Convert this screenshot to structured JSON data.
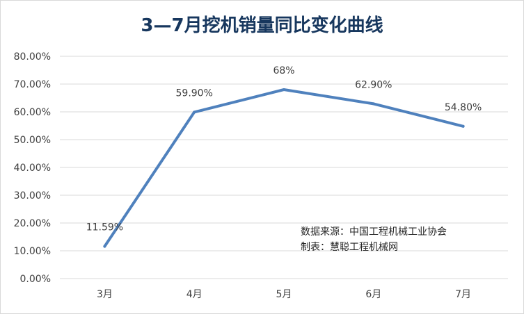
{
  "chart_data": {
    "type": "line",
    "title": "3—7月挖机销量同比变化曲线",
    "categories": [
      "3月",
      "4月",
      "5月",
      "6月",
      "7月"
    ],
    "series": [
      {
        "values": [
          11.59,
          59.9,
          68,
          62.9,
          54.8
        ],
        "color": "#4f81bd",
        "data_labels": [
          "11.59%",
          "59.90%",
          "68%",
          "62.90%",
          "54.80%"
        ]
      }
    ],
    "y_tick_labels": [
      "0.00%",
      "10.00%",
      "20.00%",
      "30.00%",
      "40.00%",
      "50.00%",
      "60.00%",
      "70.00%",
      "80.00%"
    ],
    "ylim": [
      0,
      80
    ],
    "y_tick_step": 10,
    "grid": true,
    "legend": "none"
  },
  "annotations": {
    "source_line": "数据来源：中国工程机械工业协会",
    "maker_line": "制表：慧聪工程机械网"
  },
  "colors": {
    "title": "#17375e",
    "line": "#4f81bd",
    "grid": "#d9d9d9",
    "text": "#404040"
  }
}
